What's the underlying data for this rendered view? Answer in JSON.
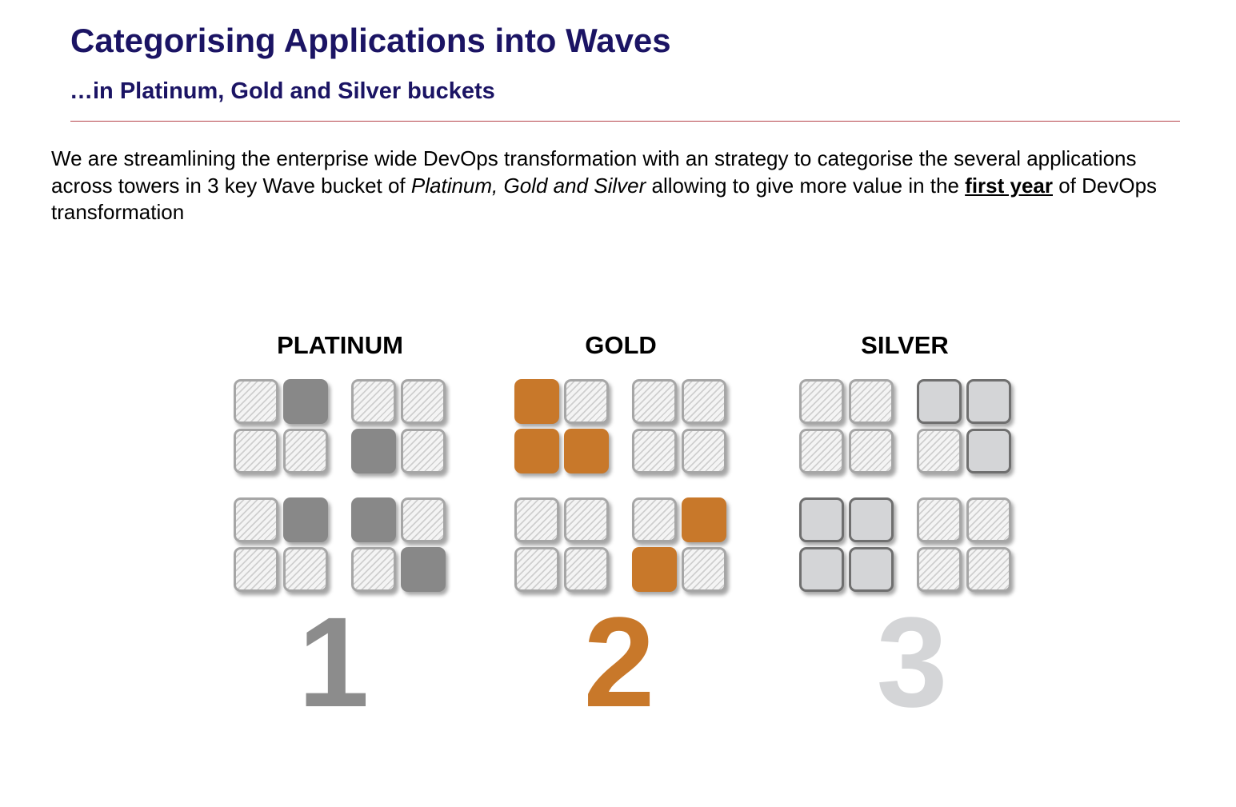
{
  "header": {
    "title": "Categorising Applications into Waves",
    "subtitle": "…in Platinum, Gold and Silver buckets"
  },
  "intro": {
    "part1": "We are streamlining the enterprise wide DevOps transformation with an strategy to categorise the several applications across towers in 3 key Wave bucket of ",
    "emphasis": "Platinum, Gold and Silver",
    "part2": " allowing to give more value in the ",
    "strong": "first year",
    "part3": " of DevOps transformation"
  },
  "colors": {
    "title": "#1b1464",
    "rule": "#b5434a",
    "platinum_fill": "#888888",
    "gold_fill": "#c8782a",
    "silver_fill": "#d4d5d7",
    "hatch_border": "#a6a6a6"
  },
  "waves": [
    {
      "label": "PLATINUM",
      "number": "1",
      "number_color": "#8c8c8c",
      "fill_style": "dark",
      "groups": [
        [
          0,
          1,
          0,
          0
        ],
        [
          0,
          0,
          1,
          0
        ],
        [
          0,
          1,
          0,
          0
        ],
        [
          1,
          0,
          0,
          1
        ]
      ]
    },
    {
      "label": "GOLD",
      "number": "2",
      "number_color": "#c8782a",
      "fill_style": "orange",
      "groups": [
        [
          1,
          0,
          1,
          1
        ],
        [
          0,
          0,
          0,
          0
        ],
        [
          0,
          0,
          0,
          0
        ],
        [
          0,
          1,
          1,
          0
        ]
      ]
    },
    {
      "label": "SILVER",
      "number": "3",
      "number_color": "#d4d5d7",
      "fill_style": "light",
      "groups": [
        [
          0,
          0,
          0,
          0
        ],
        [
          1,
          1,
          0,
          1
        ],
        [
          1,
          1,
          1,
          1
        ],
        [
          0,
          0,
          0,
          0
        ]
      ]
    }
  ]
}
